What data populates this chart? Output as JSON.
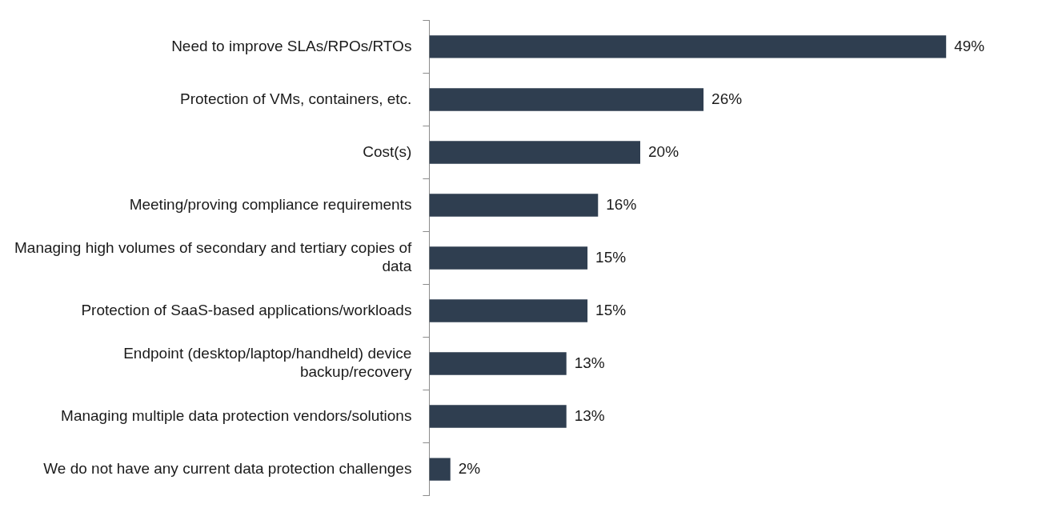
{
  "chart_data": {
    "type": "bar",
    "orientation": "horizontal",
    "categories": [
      "Need to improve SLAs/RPOs/RTOs",
      "Protection of VMs, containers, etc.",
      "Cost(s)",
      "Meeting/proving compliance requirements",
      "Managing high volumes of secondary and tertiary copies of\ndata",
      "Protection of SaaS-based applications/workloads",
      "Endpoint (desktop/laptop/handheld) device\nbackup/recovery",
      "Managing multiple data protection vendors/solutions",
      "We do not have any current data protection challenges"
    ],
    "values": [
      49,
      26,
      20,
      16,
      15,
      15,
      13,
      13,
      2
    ],
    "value_labels": [
      "49%",
      "26%",
      "20%",
      "16%",
      "15%",
      "15%",
      "13%",
      "13%",
      "2%"
    ],
    "color": "#2f3e50"
  }
}
